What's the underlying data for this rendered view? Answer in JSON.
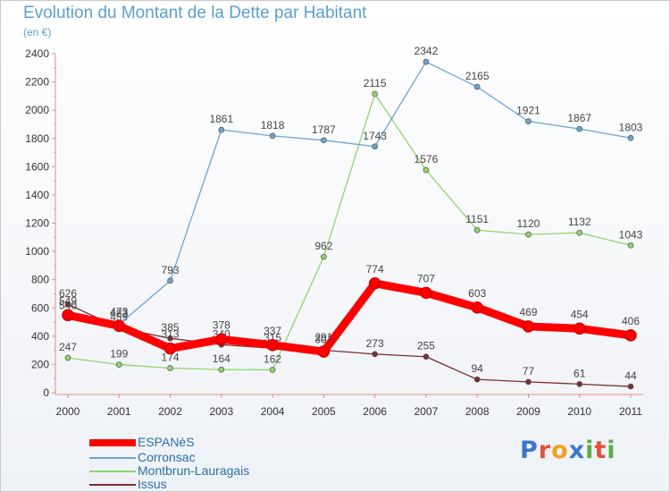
{
  "title": "Evolution du Montant de la Dette par Habitant",
  "subtitle": "(en €)",
  "logo": {
    "text": "Proxiti",
    "colors": [
      "#3c78c8",
      "#e2503c",
      "#f0a020",
      "#3c78c8",
      "#56b040",
      "#e2503c",
      "#56b040"
    ]
  },
  "chart_data": {
    "type": "line",
    "categories": [
      "2000",
      "2001",
      "2002",
      "2003",
      "2004",
      "2005",
      "2006",
      "2007",
      "2008",
      "2009",
      "2010",
      "2011"
    ],
    "ylim": [
      0,
      2400
    ],
    "yticks": [
      0,
      200,
      400,
      600,
      800,
      1000,
      1200,
      1400,
      1600,
      1800,
      2000,
      2200,
      2400
    ],
    "grid": false,
    "legend_position": "bottom-left",
    "series": [
      {
        "name": "Issus",
        "color": "#7a2e36",
        "values": [
          626,
          459,
          385,
          340,
          315,
          301,
          273,
          255,
          94,
          77,
          61,
          44
        ],
        "labels": [
          "626",
          "459",
          "385",
          "340",
          "315",
          "301",
          "273",
          "255",
          "94",
          "77",
          "61",
          "44"
        ]
      },
      {
        "name": "Montbrun-Lauragais",
        "color": "#8fd46a",
        "values": [
          247,
          199,
          174,
          164,
          162,
          962,
          2115,
          1576,
          1151,
          1120,
          1132,
          1043
        ],
        "labels": [
          "247",
          "199",
          "174",
          "164",
          "162",
          "962",
          "2115",
          "1576",
          "1151",
          "1120",
          "1132",
          "1043"
        ]
      },
      {
        "name": "Corronsac",
        "color": "#6aa4d6",
        "values": [
          540,
          483,
          793,
          1861,
          1818,
          1787,
          1743,
          2342,
          2165,
          1921,
          1867,
          1803
        ],
        "labels": [
          "540",
          "483",
          "793",
          "1861",
          "1818",
          "1787",
          "1743",
          "2342",
          "2165",
          "1921",
          "1867",
          "1803"
        ]
      },
      {
        "name": "ESPANèS",
        "color": "#ff0000",
        "values": [
          549,
          473,
          313,
          378,
          337,
          291,
          774,
          707,
          603,
          469,
          454,
          406
        ],
        "labels": [
          "549",
          "473",
          "313",
          "378",
          "337",
          "291",
          "774",
          "707",
          "603",
          "469",
          "454",
          "406"
        ]
      }
    ]
  }
}
